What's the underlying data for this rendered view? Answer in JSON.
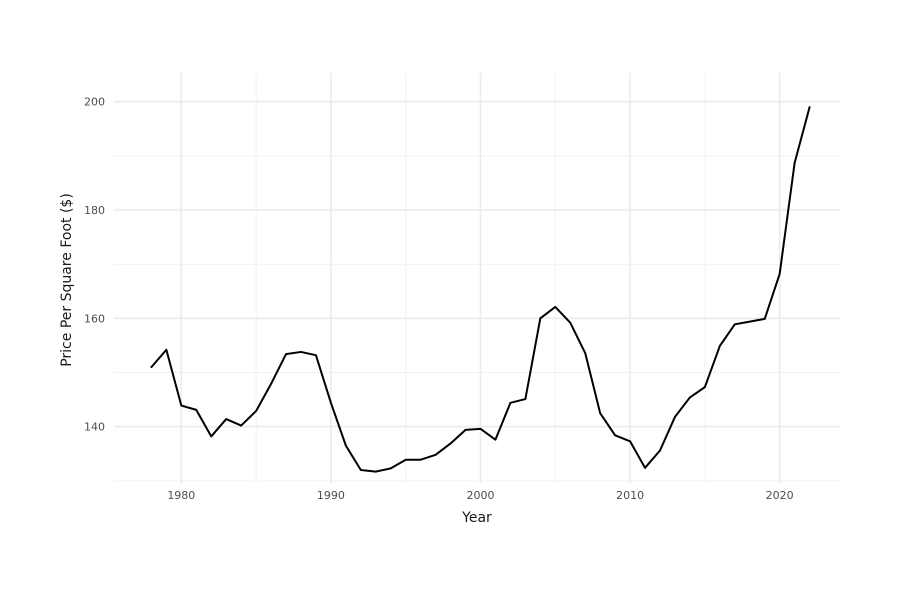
{
  "chart_data": {
    "type": "line",
    "title": "",
    "xlabel": "Year",
    "ylabel": "Price Per Square Foot ($)",
    "xlim": [
      1975.5,
      2024.1
    ],
    "ylim": [
      129.6,
      205.3
    ],
    "x_major_ticks": [
      1980,
      1990,
      2000,
      2010,
      2020
    ],
    "x_minor_ticks": [
      1985,
      1995,
      2005,
      2015
    ],
    "y_major_ticks": [
      140,
      160,
      180,
      200
    ],
    "y_minor_ticks": [
      130,
      150,
      170,
      190
    ],
    "grid": true,
    "legend": "none",
    "line_color": "#000000",
    "series": [
      {
        "x": [
          1978,
          1979,
          1980,
          1981,
          1982,
          1983,
          1984,
          1985,
          1986,
          1987,
          1988,
          1989,
          1990,
          1991,
          1992,
          1993,
          1994,
          1995,
          1996,
          1997,
          1998,
          1999,
          2000,
          2001,
          2002,
          2003,
          2004,
          2005,
          2006,
          2007,
          2008,
          2009,
          2010,
          2011,
          2012,
          2013,
          2014,
          2015,
          2016,
          2017,
          2018,
          2019,
          2020,
          2021,
          2022
        ],
        "values": [
          151.0,
          154.2,
          143.9,
          143.1,
          138.2,
          141.4,
          140.2,
          142.9,
          147.9,
          153.4,
          153.8,
          153.2,
          144.4,
          136.5,
          132.0,
          131.7,
          132.3,
          133.9,
          133.9,
          134.8,
          136.9,
          139.4,
          139.6,
          137.6,
          144.4,
          145.1,
          160.0,
          162.1,
          159.2,
          153.6,
          142.5,
          138.4,
          137.3,
          132.4,
          135.6,
          141.8,
          145.4,
          147.3,
          154.9,
          158.9,
          159.4,
          159.9,
          168.2,
          188.7,
          199.0
        ]
      }
    ]
  }
}
